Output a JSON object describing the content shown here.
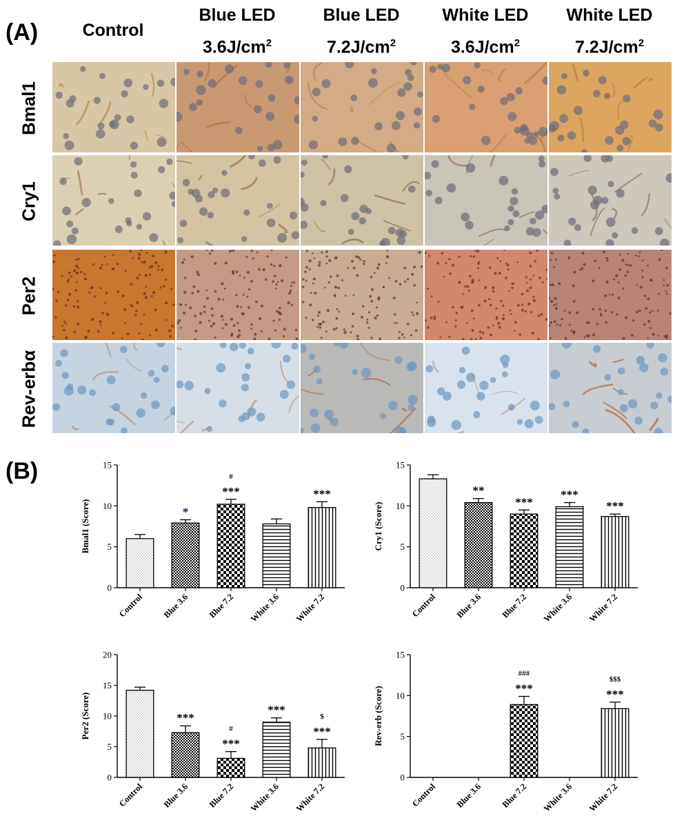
{
  "panel_a": {
    "label": "(A)",
    "columns": [
      {
        "line1": "Control",
        "line2": "",
        "sup": ""
      },
      {
        "line1": "Blue LED",
        "line2": "3.6J/cm",
        "sup": "2"
      },
      {
        "line1": "Blue LED",
        "line2": "7.2J/cm",
        "sup": "2"
      },
      {
        "line1": "White LED",
        "line2": "3.6J/cm",
        "sup": "2"
      },
      {
        "line1": "White LED",
        "line2": "7.2J/cm",
        "sup": "2"
      }
    ],
    "rows": [
      "Bmal1",
      "Cry1",
      "Per2",
      "Rev-erbα"
    ],
    "tile_colors": [
      [
        "#d8c7a6",
        "#c99a72",
        "#d2ac86",
        "#d9a072",
        "#dca560"
      ],
      [
        "#dcd0b4",
        "#d3c3a2",
        "#cdc2a6",
        "#c9c4b8",
        "#cdc7bc"
      ],
      [
        "#c9762e",
        "#c39b86",
        "#c8ad92",
        "#d4866a",
        "#b98279"
      ],
      [
        "#c6d4e2",
        "#d6dfe8",
        "#b9b9b8",
        "#d9e3ee",
        "#c6ccd2"
      ]
    ],
    "accent_colors": [
      "#a8651f",
      "#7a3e2a",
      "#3e3e50",
      "#b86a3c"
    ]
  },
  "panel_b": {
    "label": "(B)"
  },
  "chart_data": [
    {
      "type": "bar",
      "ylabel": "Bmal1 (Score)",
      "ylim": [
        0,
        15
      ],
      "yticks": [
        0,
        5,
        10,
        15
      ],
      "categories": [
        "Control",
        "Blue 3.6",
        "Blue 7.2",
        "White 3.6",
        "White 7.2"
      ],
      "values": [
        6.0,
        7.9,
        10.2,
        7.8,
        9.8
      ],
      "errors": [
        0.5,
        0.4,
        0.6,
        0.6,
        0.7
      ],
      "patterns": [
        "dots",
        "checker-fine",
        "checker",
        "hlines",
        "vlines"
      ],
      "annotations": [
        {
          "index": 1,
          "text": "*",
          "color": "#1a1a5a"
        },
        {
          "index": 2,
          "text": "***"
        },
        {
          "index": 2,
          "text": "#",
          "small": true
        },
        {
          "index": 4,
          "text": "***"
        }
      ]
    },
    {
      "type": "bar",
      "ylabel": "Cry1 (Score)",
      "ylim": [
        0,
        15
      ],
      "yticks": [
        0,
        5,
        10,
        15
      ],
      "categories": [
        "Control",
        "Blue 3.6",
        "Blue 7.2",
        "White 3.6",
        "White 7.2"
      ],
      "values": [
        13.3,
        10.4,
        9.0,
        9.9,
        8.7
      ],
      "errors": [
        0.5,
        0.5,
        0.5,
        0.5,
        0.3
      ],
      "patterns": [
        "dots",
        "checker-fine",
        "checker",
        "hlines",
        "vlines"
      ],
      "annotations": [
        {
          "index": 1,
          "text": "**"
        },
        {
          "index": 2,
          "text": "***"
        },
        {
          "index": 3,
          "text": "***"
        },
        {
          "index": 4,
          "text": "***"
        }
      ]
    },
    {
      "type": "bar",
      "ylabel": "Per2 (Score)",
      "ylim": [
        0,
        20
      ],
      "yticks": [
        0,
        5,
        10,
        15,
        20
      ],
      "categories": [
        "Control",
        "Blue 3.6",
        "Blue 7.2",
        "White 3.6",
        "White 7.2"
      ],
      "values": [
        14.2,
        7.3,
        3.1,
        9.0,
        4.8
      ],
      "errors": [
        0.5,
        1.1,
        1.1,
        0.7,
        1.4
      ],
      "patterns": [
        "dots",
        "checker-fine",
        "checker",
        "hlines",
        "vlines"
      ],
      "annotations": [
        {
          "index": 1,
          "text": "***"
        },
        {
          "index": 2,
          "text": "***"
        },
        {
          "index": 2,
          "text": "#",
          "small": true
        },
        {
          "index": 3,
          "text": "***"
        },
        {
          "index": 4,
          "text": "***"
        },
        {
          "index": 4,
          "text": "$",
          "small": true
        }
      ]
    },
    {
      "type": "bar",
      "ylabel": "Rev-erb (Score)",
      "ylim": [
        0,
        15
      ],
      "yticks": [
        0,
        5,
        10,
        15
      ],
      "categories": [
        "Control",
        "Blue 3.6",
        "Blue 7.2",
        "White 3.6",
        "White 7.2"
      ],
      "values": [
        0,
        0,
        8.9,
        0,
        8.4
      ],
      "errors": [
        0,
        0,
        1.0,
        0,
        0.8
      ],
      "patterns": [
        "dots",
        "checker-fine",
        "checker",
        "hlines",
        "vlines"
      ],
      "annotations": [
        {
          "index": 2,
          "text": "***"
        },
        {
          "index": 2,
          "text": "###",
          "small": true
        },
        {
          "index": 4,
          "text": "***"
        },
        {
          "index": 4,
          "text": "$$$",
          "small": true
        }
      ]
    }
  ]
}
